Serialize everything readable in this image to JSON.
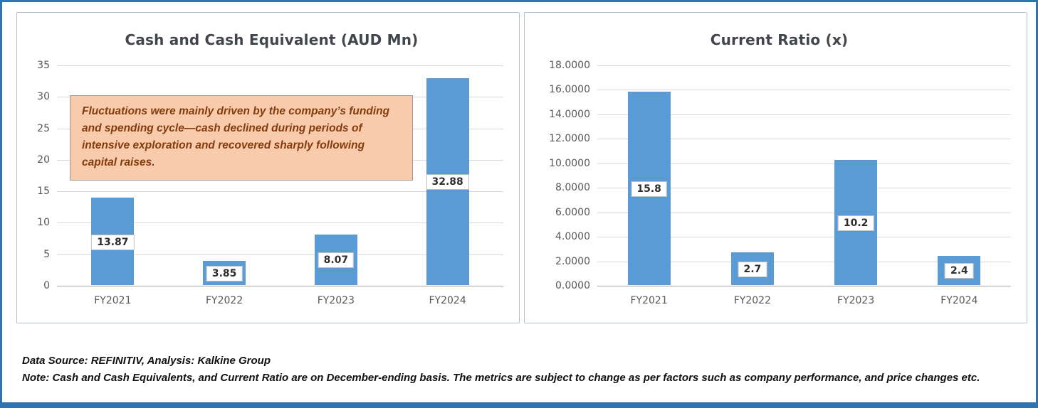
{
  "frame": {
    "accent_color": "#2E74B5"
  },
  "chart_data": [
    {
      "type": "bar",
      "title": "Cash and Cash Equivalent (AUD Mn)",
      "categories": [
        "FY2021",
        "FY2022",
        "FY2023",
        "FY2024"
      ],
      "values": [
        13.87,
        3.85,
        8.07,
        32.88
      ],
      "labels": [
        "13.87",
        "3.85",
        "8.07",
        "32.88"
      ],
      "ylim": [
        0,
        35
      ],
      "yticks": [
        "0",
        "5",
        "10",
        "15",
        "20",
        "25",
        "30",
        "35"
      ],
      "grid": true,
      "legend": "none",
      "bar_color": "#5B9BD5",
      "annotation": "Fluctuations were mainly driven by the company’s funding and spending cycle—cash declined during periods of intensive exploration and recovered sharply following capital raises."
    },
    {
      "type": "bar",
      "title": "Current Ratio (x)",
      "categories": [
        "FY2021",
        "FY2022",
        "FY2023",
        "FY2024"
      ],
      "values": [
        15.8,
        2.7,
        10.2,
        2.4
      ],
      "labels": [
        "15.8",
        "2.7",
        "10.2",
        "2.4"
      ],
      "ylim": [
        0,
        18
      ],
      "yticks": [
        "0.0000",
        "2.0000",
        "4.0000",
        "6.0000",
        "8.0000",
        "10.0000",
        "12.0000",
        "14.0000",
        "16.0000",
        "18.0000"
      ],
      "grid": true,
      "legend": "none",
      "bar_color": "#5B9BD5"
    }
  ],
  "footer": {
    "line1": "Data Source: REFINITIV, Analysis: Kalkine Group",
    "line2": "Note: Cash and Cash Equivalents, and Current Ratio are on  December-ending basis. The metrics are subject to change as per factors such as company performance, and price changes etc."
  }
}
